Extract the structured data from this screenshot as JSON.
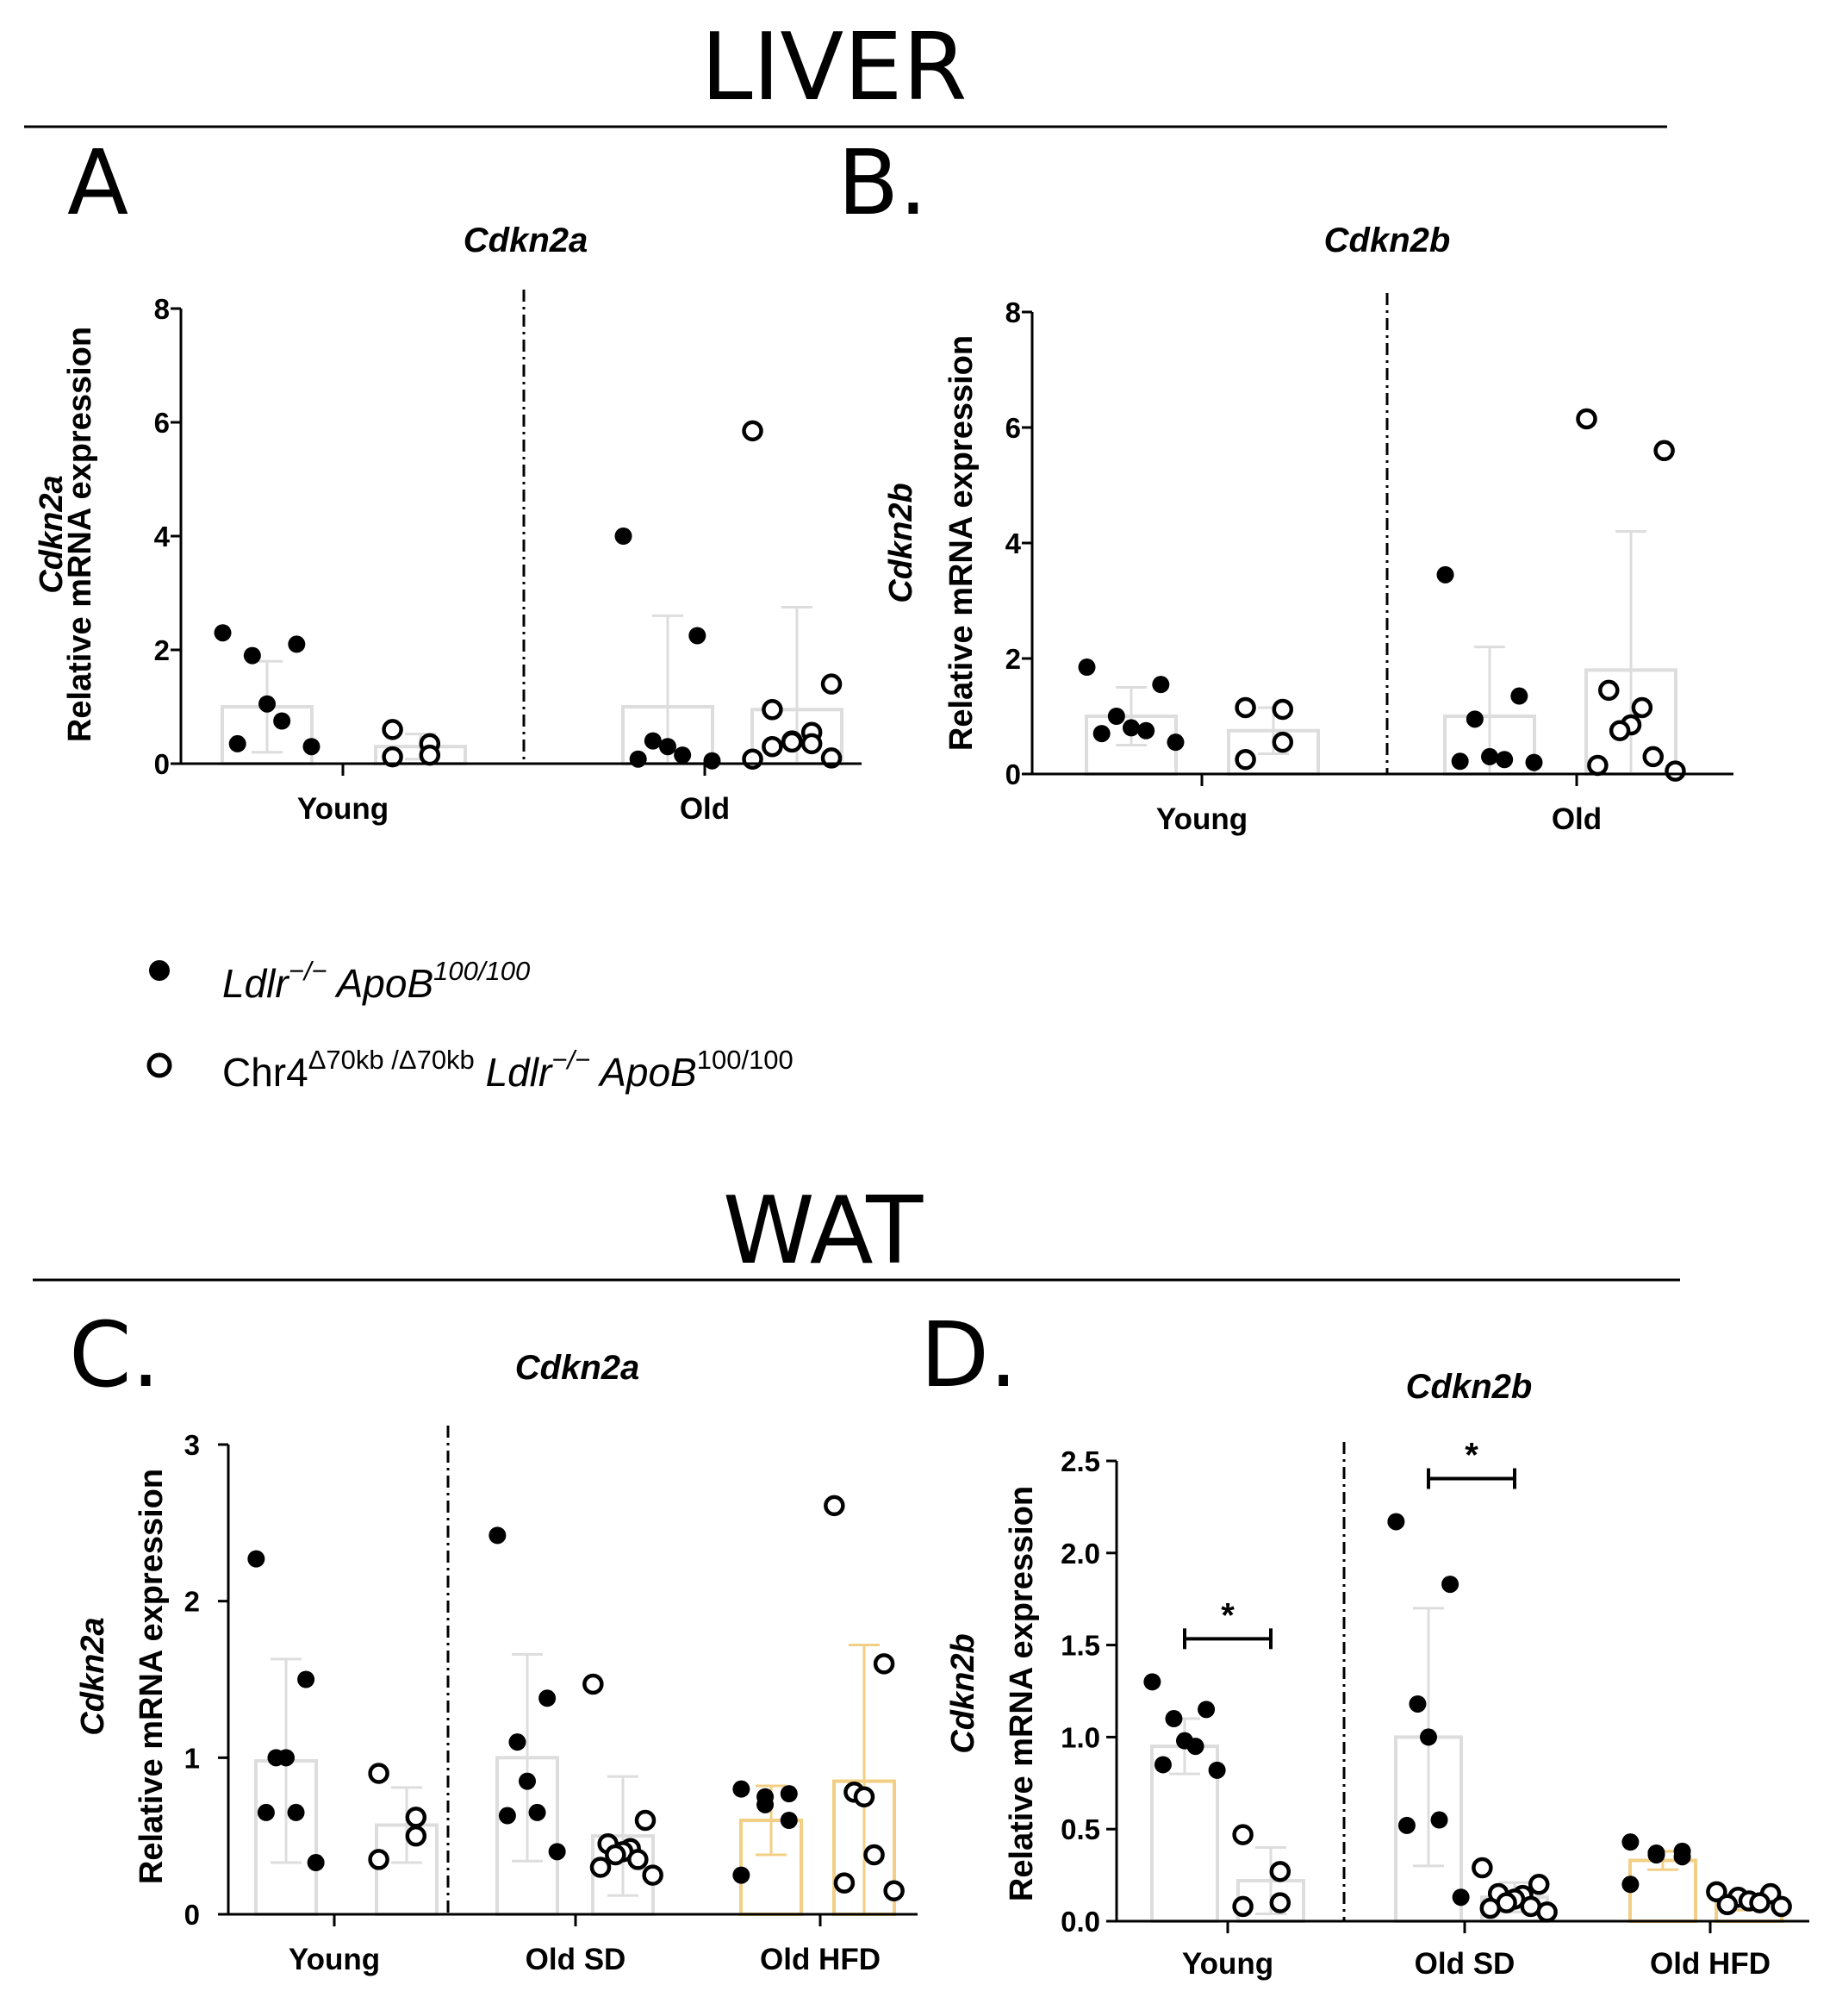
{
  "figure": {
    "liver_title": "LIVER",
    "wat_title": "WAT",
    "panel_letters": [
      "A",
      "B.",
      "C.",
      "D."
    ]
  },
  "legend": {
    "series_1": {
      "marker": "filled",
      "parts": [
        {
          "t": "Ldlr",
          "s": "it"
        },
        {
          "t": "−/−",
          "s": "sup-it"
        },
        {
          "t": " ApoB",
          "s": "it"
        },
        {
          "t": "100/100",
          "s": "sup-it"
        }
      ]
    },
    "series_2": {
      "marker": "open",
      "parts": [
        {
          "t": "Chr4",
          "s": ""
        },
        {
          "t": "Δ70kb /Δ70kb",
          "s": "sup"
        },
        {
          "t": " Ldlr",
          "s": "it"
        },
        {
          "t": "−/−",
          "s": "sup-it"
        },
        {
          "t": " ApoB",
          "s": "it"
        },
        {
          "t": "100/100",
          "s": "sup"
        }
      ]
    }
  },
  "colors": {
    "ink": "#000000",
    "bar_outline": "#dddddd",
    "bar_outline_hfd": "#f2cf85",
    "errorbar": "#dddddd"
  },
  "chart_data": [
    {
      "panel": "A",
      "type": "scatter",
      "title": "Cdkn2a",
      "ylabel_gene": "Cdkn2a",
      "ylabel": "Relative mRNA expression",
      "ylim": [
        0,
        8
      ],
      "yticks": [
        "0",
        "2",
        "4",
        "6",
        "8"
      ],
      "categories": [
        "Young",
        "Old"
      ],
      "series": [
        {
          "name": "Ldlr−/− ApoB100/100",
          "marker": "filled",
          "groups": [
            {
              "category": "Young",
              "mean": 1.0,
              "sd": 0.8,
              "points": [
                2.3,
                2.1,
                1.9,
                1.05,
                0.75,
                0.35,
                0.3
              ]
            },
            {
              "category": "Old",
              "mean": 1.0,
              "sd": 1.6,
              "points": [
                4.0,
                2.25,
                0.4,
                0.3,
                0.15,
                0.08,
                0.05
              ]
            }
          ]
        },
        {
          "name": "Chr4Δ70kb/Δ70kb Ldlr−/− ApoB100/100",
          "marker": "open",
          "groups": [
            {
              "category": "Young",
              "mean": 0.3,
              "sd": 0.22,
              "points": [
                0.6,
                0.35,
                0.15,
                0.12
              ]
            },
            {
              "category": "Old",
              "mean": 0.95,
              "sd": 1.8,
              "points": [
                5.85,
                1.4,
                0.95,
                0.55,
                0.4,
                0.38,
                0.35,
                0.3,
                0.1,
                0.08
              ]
            }
          ]
        }
      ]
    },
    {
      "panel": "B.",
      "type": "scatter",
      "title": "Cdkn2b",
      "ylabel_gene": "Cdkn2b",
      "ylabel": "Relative mRNA expression",
      "ylim": [
        0,
        8
      ],
      "yticks": [
        "0",
        "2",
        "4",
        "6",
        "8"
      ],
      "categories": [
        "Young",
        "Old"
      ],
      "series": [
        {
          "name": "Ldlr−/− ApoB100/100",
          "marker": "filled",
          "groups": [
            {
              "category": "Young",
              "mean": 1.0,
              "sd": 0.5,
              "points": [
                1.85,
                1.55,
                1.0,
                0.8,
                0.75,
                0.7,
                0.55
              ]
            },
            {
              "category": "Old",
              "mean": 1.0,
              "sd": 1.2,
              "points": [
                3.45,
                1.35,
                0.95,
                0.3,
                0.25,
                0.22,
                0.2
              ]
            }
          ]
        },
        {
          "name": "Chr4Δ70kb/Δ70kb Ldlr−/− ApoB100/100",
          "marker": "open",
          "groups": [
            {
              "category": "Young",
              "mean": 0.75,
              "sd": 0.4,
              "points": [
                1.15,
                1.12,
                0.55,
                0.25
              ]
            },
            {
              "category": "Old",
              "mean": 1.8,
              "sd": 2.4,
              "points": [
                6.15,
                5.6,
                1.45,
                1.15,
                0.85,
                0.75,
                0.3,
                0.15,
                0.05
              ]
            }
          ]
        }
      ]
    },
    {
      "panel": "C.",
      "type": "scatter",
      "title": "Cdkn2a",
      "ylabel_gene": "Cdkn2a",
      "ylabel": "Relative mRNA expression",
      "ylim": [
        0,
        3
      ],
      "yticks": [
        "0",
        "1",
        "2",
        "3"
      ],
      "categories": [
        "Young",
        "Old SD",
        "Old HFD"
      ],
      "series": [
        {
          "name": "Ldlr−/− ApoB100/100",
          "marker": "filled",
          "groups": [
            {
              "category": "Young",
              "mean": 0.98,
              "sd": 0.65,
              "points": [
                2.27,
                1.5,
                1.0,
                1.0,
                0.65,
                0.65,
                0.33
              ]
            },
            {
              "category": "Old SD",
              "mean": 1.0,
              "sd": 0.66,
              "points": [
                2.42,
                1.38,
                1.1,
                0.85,
                0.65,
                0.63,
                0.4
              ]
            },
            {
              "category": "Old HFD",
              "mean": 0.6,
              "sd": 0.22,
              "points": [
                0.8,
                0.77,
                0.75,
                0.7,
                0.6,
                0.25
              ]
            }
          ]
        },
        {
          "name": "Chr4Δ70kb/Δ70kb Ldlr−/− ApoB100/100",
          "marker": "open",
          "groups": [
            {
              "category": "Young",
              "mean": 0.57,
              "sd": 0.24,
              "points": [
                0.9,
                0.62,
                0.5,
                0.35
              ]
            },
            {
              "category": "Old SD",
              "mean": 0.5,
              "sd": 0.38,
              "points": [
                1.47,
                0.6,
                0.45,
                0.42,
                0.4,
                0.38,
                0.35,
                0.3,
                0.25
              ]
            },
            {
              "category": "Old HFD",
              "mean": 0.85,
              "sd": 0.87,
              "points": [
                2.61,
                1.6,
                0.78,
                0.75,
                0.38,
                0.2,
                0.15
              ]
            }
          ]
        }
      ]
    },
    {
      "panel": "D.",
      "type": "scatter",
      "title": "Cdkn2b",
      "ylabel_gene": "Cdkn2b",
      "ylabel": "Relative mRNA expression",
      "ylim": [
        0,
        2.5
      ],
      "yticks": [
        "0.0",
        "0.5",
        "1.0",
        "1.5",
        "2.0",
        "2.5"
      ],
      "categories": [
        "Young",
        "Old SD",
        "Old HFD"
      ],
      "significance": [
        {
          "category": "Young",
          "label": "*"
        },
        {
          "category": "Old SD",
          "label": "*"
        }
      ],
      "series": [
        {
          "name": "Ldlr−/− ApoB100/100",
          "marker": "filled",
          "groups": [
            {
              "category": "Young",
              "mean": 0.95,
              "sd": 0.15,
              "points": [
                1.3,
                1.15,
                1.1,
                0.98,
                0.95,
                0.85,
                0.82
              ]
            },
            {
              "category": "Old SD",
              "mean": 1.0,
              "sd": 0.7,
              "points": [
                2.17,
                1.83,
                1.18,
                1.0,
                0.55,
                0.52,
                0.13
              ]
            },
            {
              "category": "Old HFD",
              "mean": 0.33,
              "sd": 0.05,
              "points": [
                0.43,
                0.38,
                0.37,
                0.36,
                0.35,
                0.2
              ]
            }
          ]
        },
        {
          "name": "Chr4Δ70kb/Δ70kb Ldlr−/− ApoB100/100",
          "marker": "open",
          "groups": [
            {
              "category": "Young",
              "mean": 0.22,
              "sd": 0.18,
              "points": [
                0.47,
                0.27,
                0.1,
                0.08
              ]
            },
            {
              "category": "Old SD",
              "mean": 0.13,
              "sd": 0.08,
              "points": [
                0.29,
                0.2,
                0.15,
                0.14,
                0.12,
                0.1,
                0.08,
                0.07,
                0.05
              ]
            },
            {
              "category": "Old HFD",
              "mean": 0.1,
              "sd": 0.04,
              "points": [
                0.16,
                0.15,
                0.13,
                0.11,
                0.1,
                0.09,
                0.08
              ]
            }
          ]
        }
      ]
    }
  ]
}
